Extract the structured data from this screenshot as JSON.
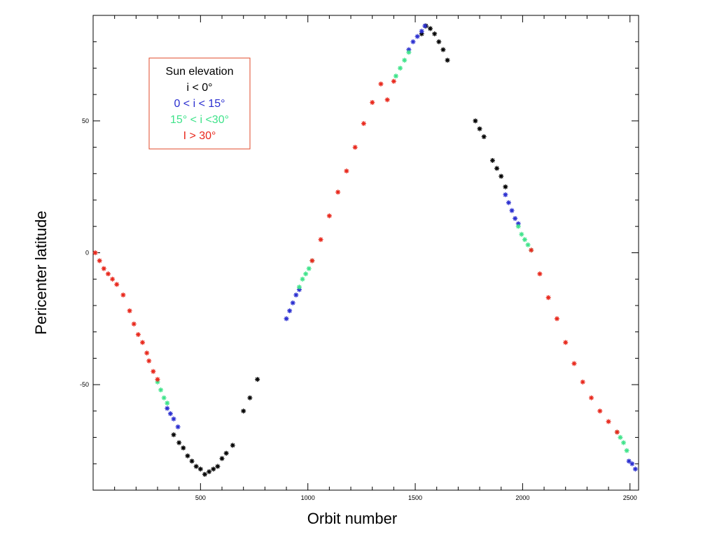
{
  "chart_data": {
    "type": "scatter",
    "title": "",
    "xlabel": "Orbit number",
    "ylabel": "Pericenter latitude",
    "xlim": [
      0,
      2540
    ],
    "ylim": [
      -90,
      90
    ],
    "x_ticks": [
      500,
      1000,
      1500,
      2000,
      2500
    ],
    "y_ticks": [
      -50,
      0,
      50
    ],
    "grid": false,
    "marker": "*",
    "legend_position": "top-left",
    "legend_title": "Sun elevation",
    "series": [
      {
        "name": "i < 0°",
        "color": "#000000",
        "segments": [
          {
            "x": [
              375,
              400,
              420,
              440,
              460,
              480,
              500,
              520,
              540,
              560,
              580,
              600,
              620,
              650,
              700,
              730,
              765
            ],
            "y": [
              -69,
              -72,
              -74,
              -77,
              -79,
              -81,
              -82,
              -84,
              -83,
              -82,
              -81,
              -78,
              -76,
              -73,
              -60,
              -55,
              -48
            ]
          },
          {
            "x": [
              1530,
              1550,
              1570,
              1590,
              1610,
              1630,
              1650
            ],
            "y": [
              83,
              86,
              85,
              83,
              80,
              77,
              73
            ]
          },
          {
            "x": [
              1780,
              1800,
              1820,
              1860,
              1880,
              1900,
              1920
            ],
            "y": [
              50,
              47,
              44,
              35,
              32,
              29,
              25
            ]
          }
        ]
      },
      {
        "name": "0 < i < 15°",
        "color": "#2b2fd0",
        "segments": [
          {
            "x": [
              345,
              360,
              375,
              395
            ],
            "y": [
              -59,
              -61,
              -63,
              -66
            ]
          },
          {
            "x": [
              900,
              915,
              930,
              945,
              960
            ],
            "y": [
              -25,
              -22,
              -19,
              -16,
              -14
            ]
          },
          {
            "x": [
              1470,
              1490,
              1510,
              1530,
              1545
            ],
            "y": [
              77,
              80,
              82,
              84,
              86
            ]
          },
          {
            "x": [
              1920,
              1935,
              1950,
              1965,
              1980
            ],
            "y": [
              22,
              19,
              16,
              13,
              11
            ]
          },
          {
            "x": [
              2495,
              2510,
              2525
            ],
            "y": [
              -79,
              -80,
              -82
            ]
          }
        ]
      },
      {
        "name": "15° < i <30°",
        "color": "#3fe38a",
        "segments": [
          {
            "x": [
              300,
              315,
              330,
              345
            ],
            "y": [
              -49,
              -52,
              -55,
              -57
            ]
          },
          {
            "x": [
              960,
              975,
              990,
              1005,
              1020
            ],
            "y": [
              -13,
              -10,
              -8,
              -6,
              -3
            ]
          },
          {
            "x": [
              1410,
              1430,
              1450,
              1470
            ],
            "y": [
              67,
              70,
              73,
              76
            ]
          },
          {
            "x": [
              1980,
              1995,
              2010,
              2025,
              2040
            ],
            "y": [
              10,
              7,
              5,
              3,
              1
            ]
          },
          {
            "x": [
              2440,
              2455,
              2470,
              2485
            ],
            "y": [
              -68,
              -70,
              -72,
              -75
            ]
          }
        ]
      },
      {
        "name": "I > 30°",
        "color": "#e8281c",
        "segments": [
          {
            "x": [
              10,
              30,
              50,
              70,
              90,
              110,
              140,
              170,
              190,
              210,
              230,
              250,
              260,
              280,
              300
            ],
            "y": [
              0,
              -3,
              -6,
              -8,
              -10,
              -12,
              -16,
              -22,
              -27,
              -31,
              -34,
              -38,
              -41,
              -45,
              -48
            ]
          },
          {
            "x": [
              1020,
              1060,
              1100,
              1140,
              1180,
              1220,
              1260,
              1300,
              1340,
              1370,
              1400
            ],
            "y": [
              -3,
              5,
              14,
              23,
              31,
              40,
              49,
              57,
              64,
              58,
              65
            ]
          },
          {
            "x": [
              2040,
              2080,
              2120,
              2160,
              2200,
              2240,
              2280,
              2320,
              2360,
              2400,
              2440
            ],
            "y": [
              1,
              -8,
              -17,
              -25,
              -34,
              -42,
              -49,
              -55,
              -60,
              -64,
              -68
            ]
          }
        ]
      }
    ]
  }
}
